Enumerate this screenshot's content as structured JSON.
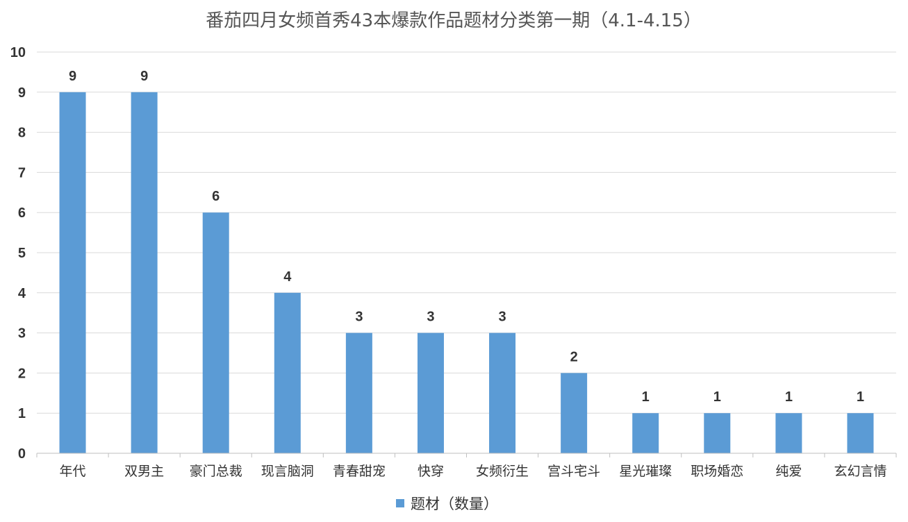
{
  "chart_data": {
    "type": "bar",
    "title": "番茄四月女频首秀43本爆款作品题材分类第一期（4.1-4.15）",
    "categories": [
      "年代",
      "双男主",
      "豪门总裁",
      "现言脑洞",
      "青春甜宠",
      "快穿",
      "女频衍生",
      "宫斗宅斗",
      "星光璀璨",
      "职场婚恋",
      "纯爱",
      "玄幻言情"
    ],
    "series": [
      {
        "name": "题材（数量）",
        "values": [
          9,
          9,
          6,
          4,
          3,
          3,
          3,
          2,
          1,
          1,
          1,
          1
        ]
      }
    ],
    "ylim": [
      0,
      10
    ],
    "yticks": [
      0,
      1,
      2,
      3,
      4,
      5,
      6,
      7,
      8,
      9,
      10
    ],
    "grid": true,
    "legend_position": "bottom",
    "bar_color": "#5b9bd5"
  }
}
